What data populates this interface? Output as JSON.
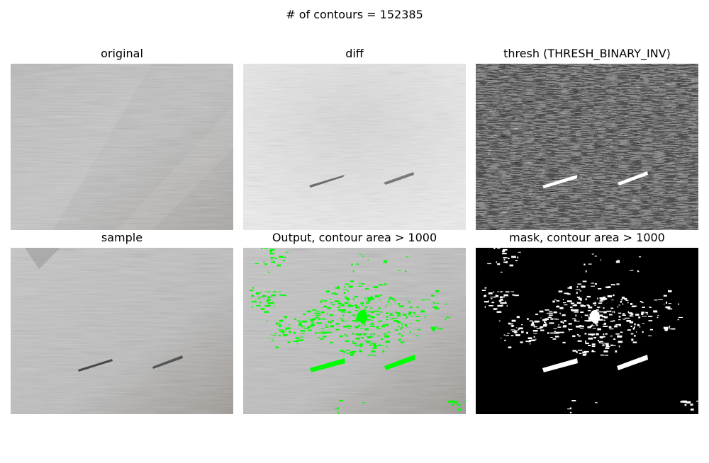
{
  "figure": {
    "title": "# of contours = 152385",
    "panels": [
      {
        "id": "original",
        "title": "original"
      },
      {
        "id": "diff",
        "title": "diff"
      },
      {
        "id": "thresh",
        "title": "thresh (THRESH_BINARY_INV)"
      },
      {
        "id": "sample",
        "title": "sample"
      },
      {
        "id": "output",
        "title": "Output, contour area > 1000"
      },
      {
        "id": "mask",
        "title": "mask, contour area > 1000"
      }
    ],
    "colors": {
      "fabric": "#b9b9b9",
      "diff_bg": "#e6e6e6",
      "thresh_bg": "#1e1e1e",
      "highlight": "#00ff00",
      "mask_bg": "#000000",
      "mask_fg": "#ffffff"
    }
  }
}
